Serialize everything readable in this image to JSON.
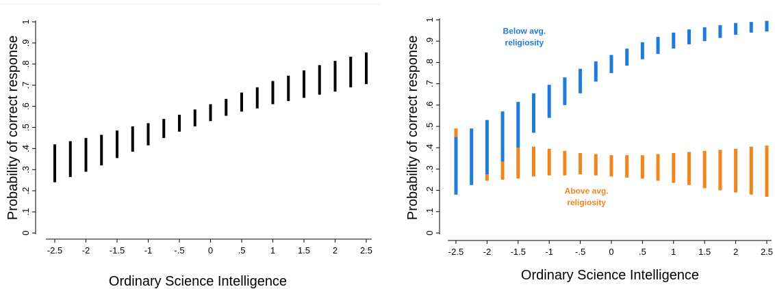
{
  "colors": {
    "all": "#000000",
    "below_avg": "#1f7bde",
    "above_avg": "#f2861e",
    "axis": "#000000",
    "text": "#000000"
  },
  "chart_data": [
    {
      "type": "range-bar",
      "xlabel": "Ordinary Science Intelligence",
      "ylabel": "Probability of correct response",
      "xlim": [
        -2.5,
        2.5
      ],
      "ylim": [
        0,
        1
      ],
      "xticks": [
        "-2.5",
        "-2",
        "-1.5",
        "-1",
        "-.5",
        "0",
        ".5",
        "1",
        "1.5",
        "2",
        "2.5"
      ],
      "yticks": [
        "0",
        ".1",
        ".2",
        ".3",
        ".4",
        ".5",
        ".6",
        ".7",
        ".8",
        ".9",
        "1"
      ],
      "series": [
        {
          "color": "#000000",
          "x": [
            -2.5,
            -2.25,
            -2,
            -1.75,
            -1.5,
            -1.25,
            -1,
            -0.75,
            -0.5,
            -0.25,
            0,
            0.25,
            0.5,
            0.75,
            1,
            1.25,
            1.5,
            1.75,
            2,
            2.25,
            2.5
          ],
          "low": [
            0.24,
            0.265,
            0.29,
            0.32,
            0.355,
            0.385,
            0.415,
            0.45,
            0.48,
            0.505,
            0.53,
            0.555,
            0.575,
            0.59,
            0.61,
            0.625,
            0.64,
            0.655,
            0.67,
            0.69,
            0.705
          ],
          "high": [
            0.42,
            0.435,
            0.45,
            0.465,
            0.485,
            0.505,
            0.52,
            0.54,
            0.56,
            0.585,
            0.61,
            0.635,
            0.665,
            0.69,
            0.72,
            0.745,
            0.77,
            0.795,
            0.815,
            0.835,
            0.855
          ]
        }
      ]
    },
    {
      "type": "range-bar",
      "xlabel": "Ordinary Science Intelligence",
      "ylabel": "Probability of correct response",
      "xlim": [
        -2.5,
        2.5
      ],
      "ylim": [
        0,
        1
      ],
      "xticks": [
        "-2.5",
        "-2",
        "-1.5",
        "-1",
        "-.5",
        "0",
        ".5",
        "1",
        "1.5",
        "2",
        "2.5"
      ],
      "yticks": [
        "0",
        ".1",
        ".2",
        ".3",
        ".4",
        ".5",
        ".6",
        ".7",
        ".8",
        ".9",
        "1"
      ],
      "annotations": [
        {
          "lines": [
            "Below avg.",
            "religiosity"
          ],
          "color": "#1f7bde",
          "x": -1.4,
          "y": 0.935
        },
        {
          "lines": [
            "Above avg.",
            "religiosity"
          ],
          "color": "#f2861e",
          "x": -0.4,
          "y": 0.185
        }
      ],
      "series": [
        {
          "name": "Above avg. religiosity",
          "color": "#f2861e",
          "x": [
            -2.5,
            -2,
            -1.75,
            -1.5,
            -1.25,
            -1,
            -0.75,
            -0.5,
            -0.25,
            0,
            0.25,
            0.5,
            0.75,
            1,
            1.25,
            1.5,
            1.75,
            2,
            2.25,
            2.5
          ],
          "low": [
            0.395,
            0.245,
            0.25,
            0.255,
            0.265,
            0.27,
            0.27,
            0.275,
            0.27,
            0.265,
            0.26,
            0.255,
            0.245,
            0.235,
            0.225,
            0.21,
            0.2,
            0.19,
            0.18,
            0.17
          ],
          "high": [
            0.49,
            0.28,
            0.335,
            0.4,
            0.405,
            0.395,
            0.385,
            0.375,
            0.37,
            0.365,
            0.365,
            0.365,
            0.37,
            0.375,
            0.38,
            0.385,
            0.39,
            0.395,
            0.405,
            0.41
          ]
        },
        {
          "name": "Below avg. religiosity",
          "color": "#1f7bde",
          "x": [
            -2.5,
            -2.25,
            -2,
            -1.75,
            -1.5,
            -1.25,
            -1,
            -0.75,
            -0.5,
            -0.25,
            0,
            0.25,
            0.5,
            0.75,
            1,
            1.25,
            1.5,
            1.75,
            2,
            2.25,
            2.5
          ],
          "low": [
            0.18,
            0.225,
            0.275,
            0.335,
            0.4,
            0.47,
            0.54,
            0.6,
            0.655,
            0.71,
            0.75,
            0.785,
            0.815,
            0.84,
            0.865,
            0.885,
            0.9,
            0.915,
            0.93,
            0.94,
            0.945
          ],
          "high": [
            0.45,
            0.49,
            0.53,
            0.57,
            0.615,
            0.655,
            0.695,
            0.73,
            0.77,
            0.805,
            0.835,
            0.865,
            0.895,
            0.92,
            0.94,
            0.955,
            0.965,
            0.975,
            0.985,
            0.99,
            0.995
          ]
        }
      ]
    }
  ]
}
